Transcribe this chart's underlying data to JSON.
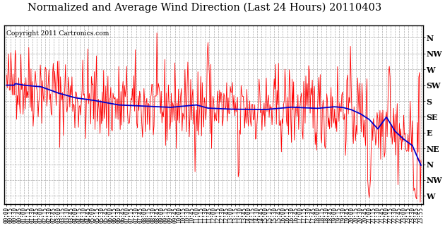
{
  "title": "Normalized and Average Wind Direction (Last 24 Hours) 20110403",
  "copyright": "Copyright 2011 Cartronics.com",
  "background_color": "#ffffff",
  "plot_bg_color": "#ffffff",
  "grid_color": "#aaaaaa",
  "raw_color": "#ff0000",
  "avg_color": "#0000cc",
  "ytick_labels": [
    "N",
    "NW",
    "W",
    "SW",
    "S",
    "SE",
    "E",
    "NE",
    "N",
    "NW",
    "W"
  ],
  "ytick_values": [
    10,
    9,
    8,
    7,
    6,
    5,
    4,
    3,
    2,
    1,
    0
  ],
  "ylim": [
    -0.5,
    10.8
  ],
  "title_fontsize": 10.5,
  "copyright_fontsize": 6.5,
  "axis_label_fontsize": 5.5,
  "ylabel_fontsize": 8,
  "seed": 42,
  "n_points": 577
}
